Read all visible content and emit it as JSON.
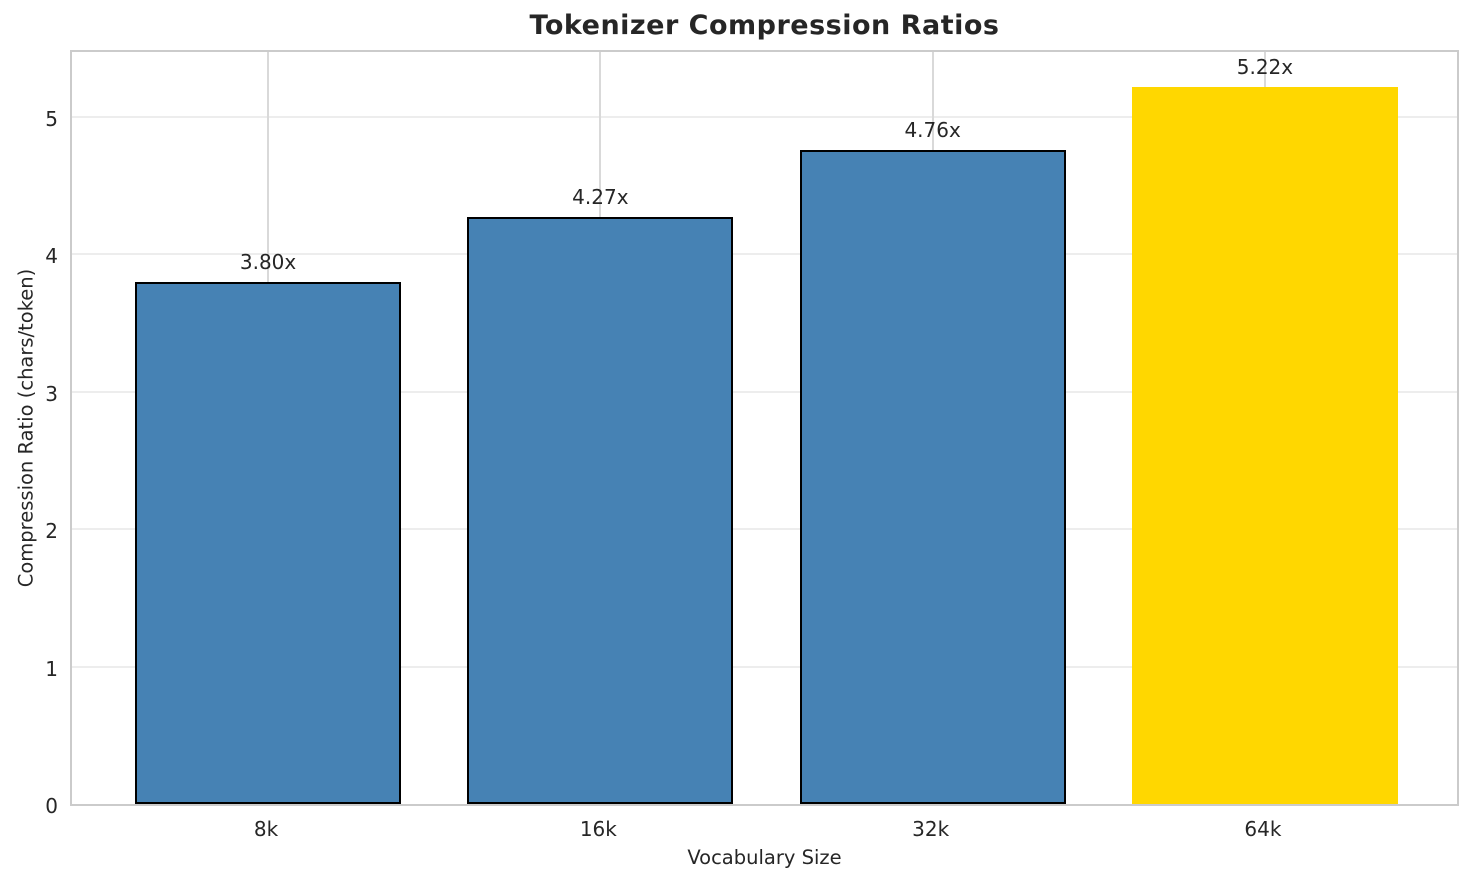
{
  "chart_data": {
    "type": "bar",
    "title": "Tokenizer Compression Ratios",
    "xlabel": "Vocabulary Size",
    "ylabel": "Compression Ratio (chars/token)",
    "categories": [
      "8k",
      "16k",
      "32k",
      "64k"
    ],
    "values": [
      3.8,
      4.27,
      4.76,
      5.22
    ],
    "bar_labels": [
      "3.80x",
      "4.27x",
      "4.76x",
      "5.22x"
    ],
    "ylim": [
      0,
      5.5
    ],
    "yticks": [
      0,
      1,
      2,
      3,
      4,
      5
    ],
    "grid": "both",
    "legend": "none",
    "highlighted_bar": "64k",
    "colors": {
      "bar_default": "#4682B4",
      "bar_highlight": "#FFD700",
      "bar_edge": "#000000",
      "highlight_edge": null,
      "grid_horizontal": "#EDEDED",
      "grid_vertical": "#D9D9D9",
      "spine": "#CBCBCB",
      "text": "#262626",
      "background": "#FFFFFF"
    }
  }
}
